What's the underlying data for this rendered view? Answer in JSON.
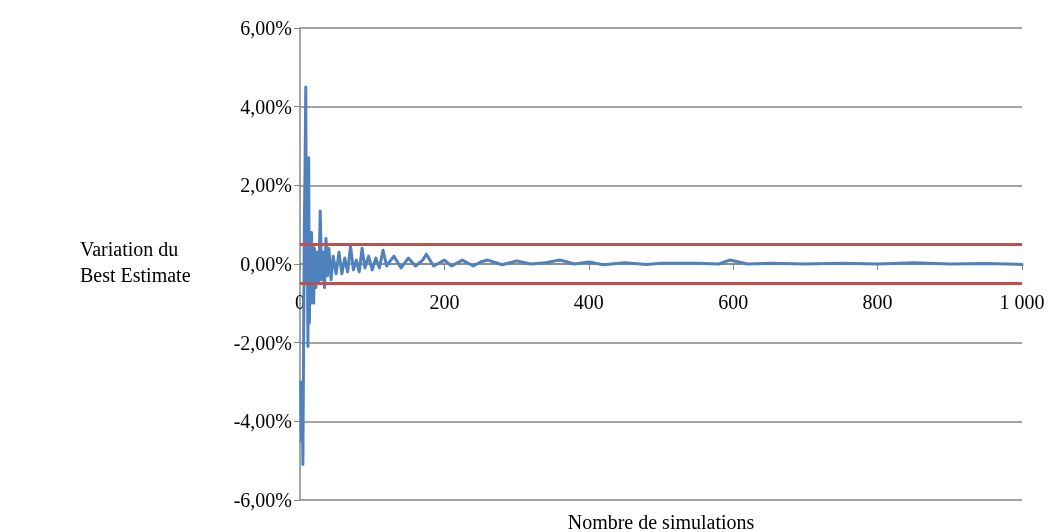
{
  "chart_data": {
    "type": "line",
    "xlabel": "Nombre de simulations",
    "ylabel": "Variation du Best Estimate",
    "xlim": [
      0,
      1000
    ],
    "xticks": [
      0,
      200,
      400,
      600,
      800,
      {
        "value": 1000,
        "label": "1 000"
      }
    ],
    "ylim": [
      -6,
      6
    ],
    "yticks": [
      {
        "value": -6,
        "label": "-6,00%"
      },
      {
        "value": -4,
        "label": "-4,00%"
      },
      {
        "value": -2,
        "label": "-2,00%"
      },
      {
        "value": 0,
        "label": "0,00%"
      },
      {
        "value": 2,
        "label": "2,00%"
      },
      {
        "value": 4,
        "label": "4,00%"
      },
      {
        "value": 6,
        "label": "6,00%"
      }
    ],
    "grid": "y",
    "marker": "none",
    "line_style": "solid",
    "series": [
      {
        "color": "#4f81bd",
        "x": [
          1,
          2,
          3,
          4,
          5,
          6,
          7,
          8,
          9,
          10,
          11,
          12,
          13,
          14,
          15,
          16,
          17,
          18,
          19,
          20,
          22,
          24,
          26,
          28,
          30,
          32,
          34,
          36,
          38,
          40,
          43,
          46,
          50,
          54,
          58,
          62,
          66,
          70,
          74,
          78,
          82,
          86,
          90,
          95,
          100,
          105,
          110,
          115,
          120,
          130,
          140,
          150,
          160,
          170,
          175,
          185,
          200,
          210,
          225,
          240,
          250,
          260,
          280,
          300,
          320,
          340,
          360,
          380,
          400,
          420,
          450,
          480,
          500,
          550,
          580,
          595,
          620,
          650,
          700,
          750,
          800,
          850,
          900,
          950,
          1000
        ],
        "values": [
          -3.0,
          -4.5,
          -3.2,
          -5.1,
          -2.0,
          1.0,
          2.5,
          4.5,
          -0.5,
          1.2,
          -2.1,
          2.7,
          -1.5,
          0.6,
          -1.0,
          0.8,
          -0.8,
          0.5,
          -1.0,
          0.4,
          -0.6,
          0.3,
          -0.5,
          1.35,
          -0.4,
          0.3,
          -0.6,
          0.65,
          -0.3,
          0.4,
          -0.4,
          0.2,
          -0.25,
          0.3,
          -0.25,
          0.15,
          -0.2,
          0.45,
          -0.15,
          0.1,
          -0.2,
          0.4,
          -0.1,
          0.2,
          -0.15,
          0.15,
          -0.1,
          0.35,
          -0.05,
          0.2,
          -0.1,
          0.15,
          -0.05,
          0.1,
          0.25,
          -0.05,
          0.1,
          -0.05,
          0.1,
          -0.05,
          0.05,
          0.1,
          -0.02,
          0.08,
          0.0,
          0.03,
          0.1,
          0.0,
          0.05,
          -0.02,
          0.03,
          -0.01,
          0.02,
          0.02,
          0.0,
          0.1,
          0.0,
          0.02,
          0.0,
          0.02,
          0.0,
          0.03,
          0.0,
          0.01,
          -0.01
        ]
      }
    ],
    "ref_lines": [
      {
        "axis": "y",
        "value": 0.5,
        "color": "#c0504d"
      },
      {
        "axis": "y",
        "value": -0.5,
        "color": "#c0504d"
      }
    ]
  }
}
